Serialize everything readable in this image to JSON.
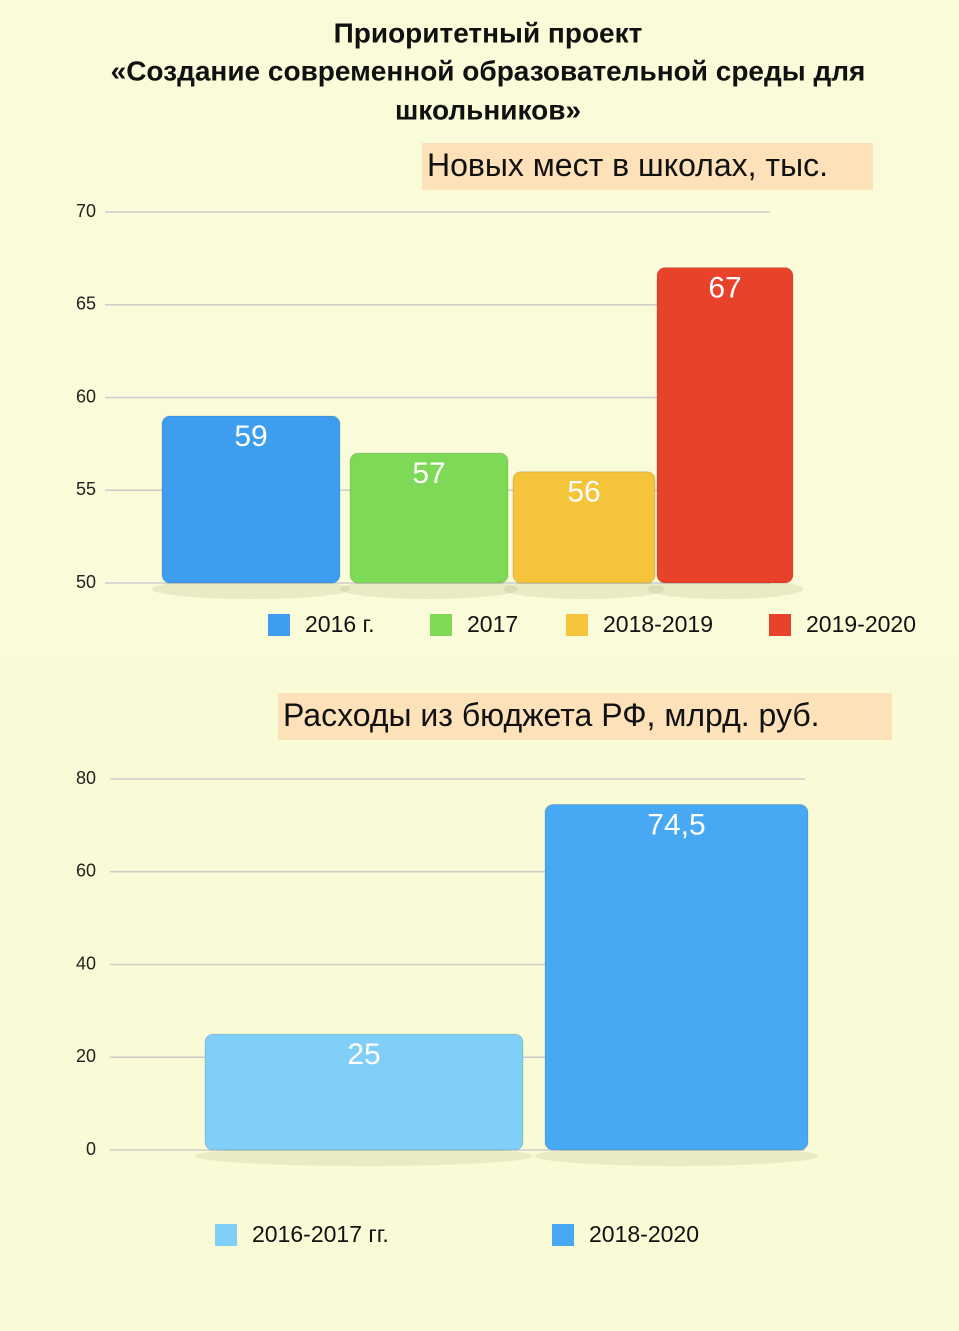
{
  "header": {
    "title": [
      "Приоритетный проект",
      "«Создание современной образовательной среды для",
      "школьников»"
    ]
  },
  "chart_data": [
    {
      "type": "bar",
      "title": "Новых мест в школах, тыс.",
      "series": [
        {
          "name": "2016 г.",
          "color": "#3d9ef0",
          "values": [
            59
          ]
        },
        {
          "name": "2017",
          "color": "#7ed957",
          "values": [
            57
          ]
        },
        {
          "name": "2018-2019",
          "color": "#f5c43a",
          "values": [
            56
          ]
        },
        {
          "name": "2019-2020",
          "color": "#e8432a",
          "values": [
            67
          ]
        }
      ],
      "ylim": [
        50,
        70
      ],
      "yticks": [
        50,
        55,
        60,
        65,
        70
      ],
      "grid": true
    },
    {
      "type": "bar",
      "title": "Расходы из бюджета РФ, млрд. руб.",
      "series": [
        {
          "name": "2016-2017 гг.",
          "color": "#80cff8",
          "values": [
            25
          ]
        },
        {
          "name": "2018-2020",
          "color": "#47a8f4",
          "values": [
            74.5
          ],
          "value_labels": [
            "74,5"
          ]
        }
      ],
      "ylim": [
        0,
        80
      ],
      "yticks": [
        0,
        20,
        40,
        60,
        80
      ],
      "grid": true
    }
  ]
}
